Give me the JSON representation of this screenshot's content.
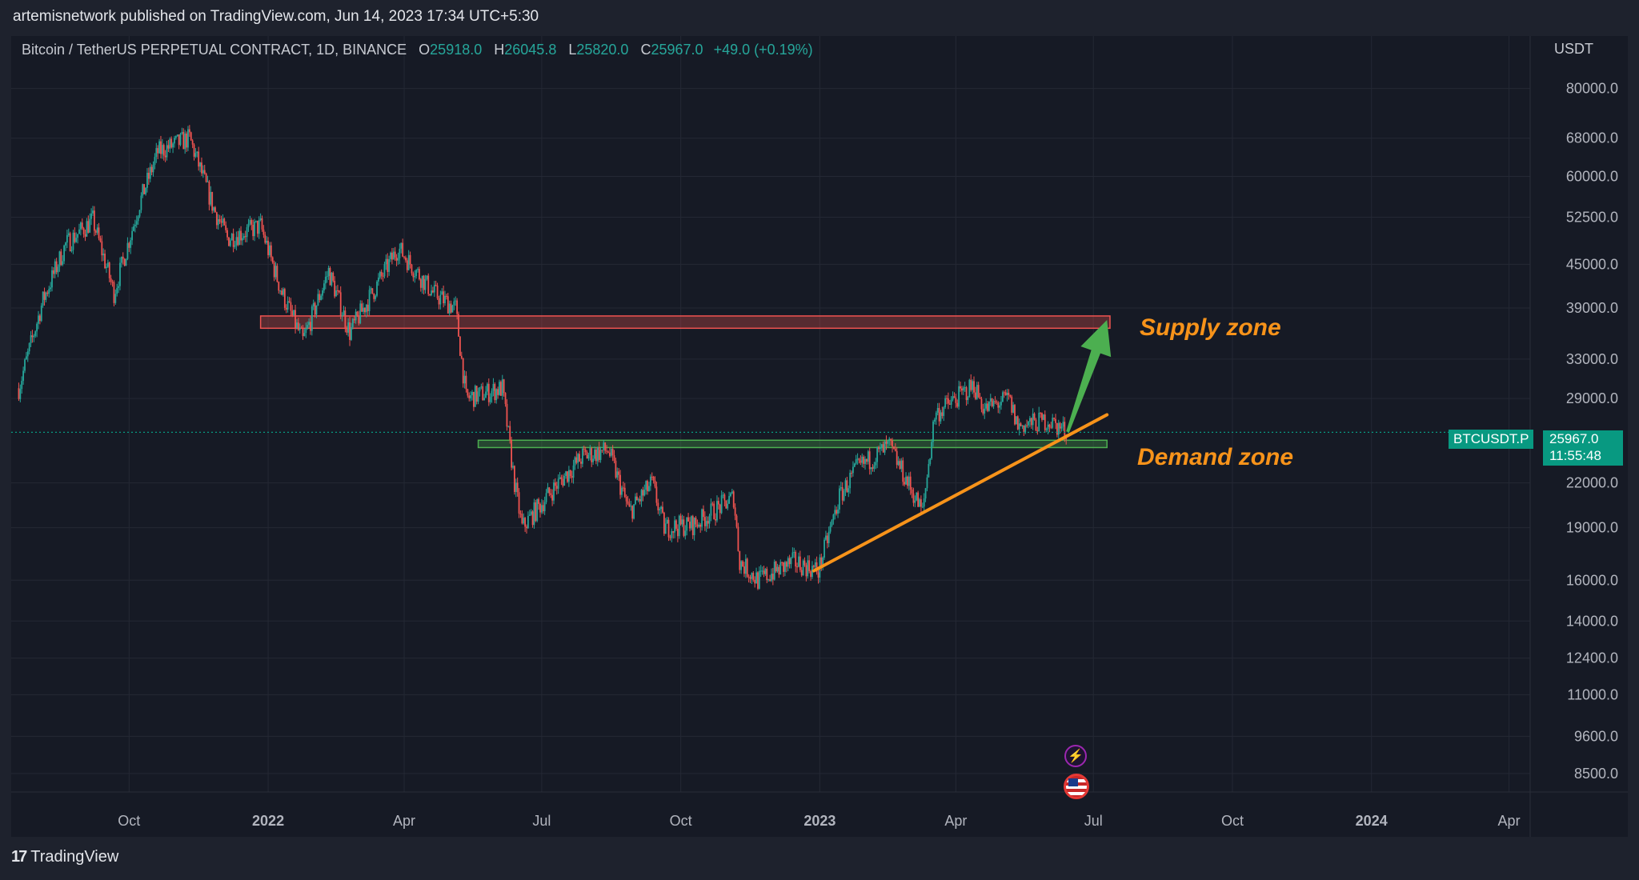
{
  "header": {
    "publisher_line": "artemisnetwork published on TradingView.com, Jun 14, 2023 17:34 UTC+5:30"
  },
  "legend": {
    "symbol": "Bitcoin / TetherUS PERPETUAL CONTRACT, 1D, BINANCE",
    "open_label": "O",
    "open": "25918.0",
    "high_label": "H",
    "high": "26045.8",
    "low_label": "L",
    "low": "25820.0",
    "close_label": "C",
    "close": "25967.0",
    "change": "+49.0 (+0.19%)"
  },
  "price_axis": {
    "currency": "USDT"
  },
  "current_price": {
    "symbol_tag": "BTCUSDT.P",
    "price": "25967.0",
    "countdown": "11:55:48"
  },
  "annotations": {
    "supply_label": "Supply zone",
    "demand_label": "Demand zone"
  },
  "footer": {
    "brand": "TradingView"
  },
  "colors": {
    "up": "#26a69a",
    "down": "#ef5350",
    "supply_zone": "#ef5350",
    "demand_zone": "#4caf50",
    "trendline": "#f7931a",
    "arrow": "#4caf50",
    "background": "#161a25",
    "grid": "#242834"
  },
  "icons": [
    "lightning-icon",
    "us-flag-icon",
    "tradingview-logo-icon"
  ],
  "chart_data": {
    "type": "candlestick",
    "scale": "log",
    "title": "Bitcoin / TetherUS PERPETUAL CONTRACT, 1D, BINANCE",
    "ylabel": "USDT",
    "ylim": [
      8000,
      95000
    ],
    "xlim": [
      "2021-07-15",
      "2024-04-15"
    ],
    "grid": true,
    "y_ticks": [
      "80000.0",
      "68000.0",
      "60000.0",
      "52500.0",
      "45000.0",
      "39000.0",
      "33000.0",
      "29000.0",
      "22000.0",
      "19000.0",
      "16000.0",
      "14000.0",
      "12400.0",
      "11000.0",
      "9600.0",
      "8500.0"
    ],
    "x_ticks": [
      {
        "label": "Oct",
        "date": "2021-10-01",
        "bold": false
      },
      {
        "label": "2022",
        "date": "2022-01-01",
        "bold": true
      },
      {
        "label": "Apr",
        "date": "2022-04-01",
        "bold": false
      },
      {
        "label": "Jul",
        "date": "2022-07-01",
        "bold": false
      },
      {
        "label": "Oct",
        "date": "2022-10-01",
        "bold": false
      },
      {
        "label": "2023",
        "date": "2023-01-01",
        "bold": true
      },
      {
        "label": "Apr",
        "date": "2023-04-01",
        "bold": false
      },
      {
        "label": "Jul",
        "date": "2023-07-01",
        "bold": false
      },
      {
        "label": "Oct",
        "date": "2023-10-01",
        "bold": false
      },
      {
        "label": "2024",
        "date": "2024-01-01",
        "bold": true
      },
      {
        "label": "Apr",
        "date": "2024-04-01",
        "bold": false
      }
    ],
    "series": [
      {
        "name": "BTCUSDT.P",
        "close_path": [
          {
            "x": "2021-07-20",
            "y": 30000
          },
          {
            "x": "2021-08-05",
            "y": 40000
          },
          {
            "x": "2021-08-20",
            "y": 48000
          },
          {
            "x": "2021-09-07",
            "y": 52000
          },
          {
            "x": "2021-09-21",
            "y": 41000
          },
          {
            "x": "2021-10-08",
            "y": 55000
          },
          {
            "x": "2021-10-20",
            "y": 65000
          },
          {
            "x": "2021-11-10",
            "y": 68000
          },
          {
            "x": "2021-11-26",
            "y": 54000
          },
          {
            "x": "2021-12-05",
            "y": 49000
          },
          {
            "x": "2021-12-27",
            "y": 51000
          },
          {
            "x": "2022-01-10",
            "y": 41000
          },
          {
            "x": "2022-01-24",
            "y": 35000
          },
          {
            "x": "2022-02-10",
            "y": 44000
          },
          {
            "x": "2022-02-24",
            "y": 36000
          },
          {
            "x": "2022-03-28",
            "y": 47500
          },
          {
            "x": "2022-04-20",
            "y": 41000
          },
          {
            "x": "2022-05-05",
            "y": 39000
          },
          {
            "x": "2022-05-12",
            "y": 29000
          },
          {
            "x": "2022-06-05",
            "y": 30000
          },
          {
            "x": "2022-06-13",
            "y": 22000
          },
          {
            "x": "2022-06-18",
            "y": 19000
          },
          {
            "x": "2022-07-08",
            "y": 21500
          },
          {
            "x": "2022-07-28",
            "y": 24000
          },
          {
            "x": "2022-08-14",
            "y": 24500
          },
          {
            "x": "2022-08-28",
            "y": 20000
          },
          {
            "x": "2022-09-12",
            "y": 22000
          },
          {
            "x": "2022-09-20",
            "y": 19000
          },
          {
            "x": "2022-10-10",
            "y": 19200
          },
          {
            "x": "2022-11-05",
            "y": 21000
          },
          {
            "x": "2022-11-09",
            "y": 17000
          },
          {
            "x": "2022-11-21",
            "y": 16000
          },
          {
            "x": "2022-12-15",
            "y": 17000
          },
          {
            "x": "2022-12-31",
            "y": 16500
          },
          {
            "x": "2023-01-14",
            "y": 21000
          },
          {
            "x": "2023-01-25",
            "y": 23000
          },
          {
            "x": "2023-02-16",
            "y": 24800
          },
          {
            "x": "2023-03-10",
            "y": 20000
          },
          {
            "x": "2023-03-18",
            "y": 27500
          },
          {
            "x": "2023-04-13",
            "y": 30300
          },
          {
            "x": "2023-04-20",
            "y": 28000
          },
          {
            "x": "2023-05-06",
            "y": 29000
          },
          {
            "x": "2023-05-12",
            "y": 26500
          },
          {
            "x": "2023-06-01",
            "y": 27000
          },
          {
            "x": "2023-06-14",
            "y": 25967
          }
        ],
        "last": {
          "open": 25918.0,
          "high": 26045.8,
          "low": 25820.0,
          "close": 25967.0
        }
      }
    ],
    "supply_zone": {
      "x0": "2021-12-27",
      "x1": "2023-07-12",
      "y0": 36500,
      "y1": 38000,
      "label": "Supply zone"
    },
    "demand_zone": {
      "x0": "2022-05-20",
      "x1": "2023-07-10",
      "y0": 24700,
      "y1": 25300,
      "label": "Demand zone"
    },
    "trendline": {
      "x0": "2022-12-28",
      "y0": 16500,
      "x1": "2023-07-10",
      "y1": 27500
    },
    "arrow": {
      "x0": "2023-06-14",
      "y0": 26000,
      "x1": "2023-07-10",
      "y1": 37500
    },
    "current_line": 25967.0
  }
}
